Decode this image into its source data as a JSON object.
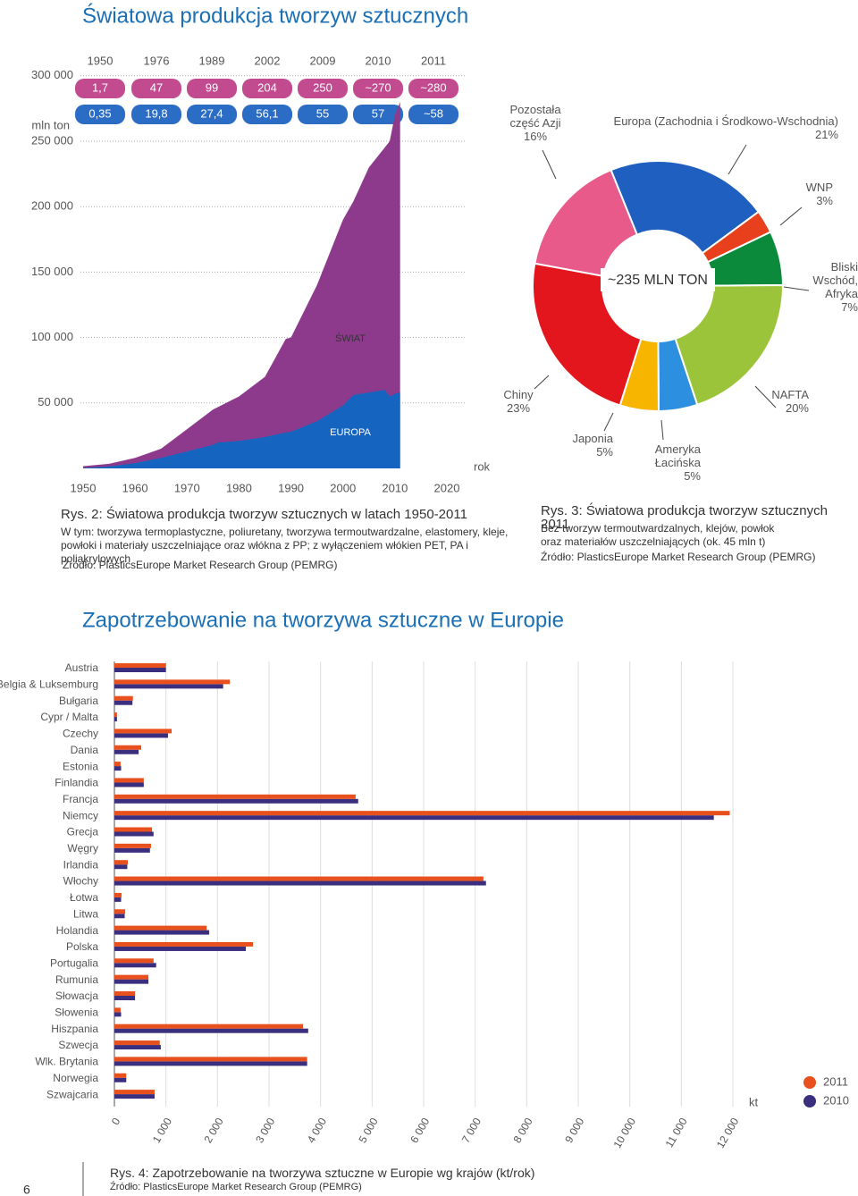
{
  "title": "Światowa produkcja tworzyw sztucznych",
  "table": {
    "years": [
      "1950",
      "1976",
      "1989",
      "2002",
      "2009",
      "2010",
      "2011"
    ],
    "world": [
      "1,7",
      "47",
      "99",
      "204",
      "250",
      "~270",
      "~280"
    ],
    "europe": [
      "0,35",
      "19,8",
      "27,4",
      "56,1",
      "55",
      "57",
      "~58"
    ]
  },
  "chart_data": [
    {
      "type": "area",
      "ylabel": "mln ton",
      "xlabel": "rok",
      "xlim": [
        1950,
        2020
      ],
      "xticks": [
        1950,
        1960,
        1970,
        1980,
        1990,
        2000,
        2010,
        2020
      ],
      "ylim": [
        0,
        300000
      ],
      "yticks": [
        {
          "value": 50000,
          "label": "50 000"
        },
        {
          "value": 100000,
          "label": "100 000"
        },
        {
          "value": 150000,
          "label": "150 000"
        },
        {
          "value": 200000,
          "label": "200 000"
        },
        {
          "value": 250000,
          "label": "250 000"
        },
        {
          "value": 300000,
          "label": "300 000"
        }
      ],
      "grid": true,
      "x": [
        1950,
        1955,
        1960,
        1965,
        1970,
        1975,
        1976,
        1980,
        1985,
        1989,
        1990,
        1995,
        2000,
        2002,
        2005,
        2008,
        2009,
        2010,
        2011
      ],
      "series": [
        {
          "name": "ŚWIAT",
          "color": "#8e3a8c",
          "values": [
            1700,
            3500,
            8000,
            15000,
            30000,
            45000,
            47000,
            55000,
            70000,
            99000,
            100000,
            140000,
            190000,
            204000,
            230000,
            245000,
            250000,
            270000,
            280000
          ]
        },
        {
          "name": "EUROPA",
          "color": "#1565c0",
          "values": [
            350,
            1500,
            4000,
            8000,
            13000,
            18000,
            19800,
            21000,
            24000,
            27400,
            28000,
            36000,
            48000,
            56100,
            58000,
            60000,
            55000,
            57000,
            58000
          ]
        }
      ],
      "caption": {
        "title": "Rys. 2: Światowa produkcja tworzyw sztucznych w latach 1950-2011",
        "note": "W tym: tworzywa termoplastyczne, poliuretany, tworzywa termoutwardzalne, elastomery, kleje, powłoki i materiały uszczelniające oraz włókna z PP; z wyłączeniem włókien PET, PA i poliakrylowych",
        "source": "Źródło: PlasticsEurope Market Research Group (PEMRG)"
      }
    },
    {
      "type": "pie",
      "center_label": "~235 MLN TON",
      "categories": [
        "Europa (Zachodnia i Środkowo-Wschodnia)",
        "WNP",
        "Bliski Wschód, Afryka",
        "NAFTA",
        "Ameryka Łacińska",
        "Japonia",
        "Chiny",
        "Pozostała część Azji"
      ],
      "values": [
        21,
        3,
        7,
        20,
        5,
        5,
        23,
        16
      ],
      "value_labels": [
        "21%",
        "3%",
        "7%",
        "20%",
        "5%",
        "5%",
        "23%",
        "16%"
      ],
      "colors": [
        "#1f5fbf",
        "#e8401c",
        "#0a8a3a",
        "#9cc43a",
        "#2d8fe0",
        "#f7b500",
        "#e3161e",
        "#e85a8a"
      ],
      "caption": {
        "title": "Rys. 3: Światowa produkcja tworzyw sztucznych 2011",
        "note": "Bez tworzyw termoutwardzalnych, klejów, powłok oraz materiałów uszczelniających (ok. 45 mln t)",
        "source": "Źródło: PlasticsEurope Market Research Group (PEMRG)"
      }
    },
    {
      "type": "bar",
      "title": "Zapotrzebowanie na tworzywa sztuczne w Europie",
      "categories": [
        "Austria",
        "Belgia & Luksemburg",
        "Bułgaria",
        "Cypr / Malta",
        "Czechy",
        "Dania",
        "Estonia",
        "Finlandia",
        "Francja",
        "Niemcy",
        "Grecja",
        "Węgry",
        "Irlandia",
        "Włochy",
        "Łotwa",
        "Litwa",
        "Holandia",
        "Polska",
        "Portugalia",
        "Rumunia",
        "Słowacja",
        "Słowenia",
        "Hiszpania",
        "Szwecja",
        "Wlk. Brytania",
        "Norwegia",
        "Szwajcaria"
      ],
      "series": [
        {
          "name": "2011",
          "color": "#e8501e",
          "values": [
            1000,
            2240,
            360,
            50,
            1110,
            520,
            120,
            570,
            4680,
            11940,
            730,
            710,
            260,
            7160,
            140,
            210,
            1790,
            2690,
            760,
            660,
            400,
            120,
            3660,
            880,
            3740,
            230,
            780
          ]
        },
        {
          "name": "2010",
          "color": "#3a2f7f",
          "values": [
            1000,
            2110,
            350,
            50,
            1040,
            470,
            130,
            570,
            4730,
            11630,
            760,
            690,
            250,
            7210,
            130,
            200,
            1840,
            2550,
            810,
            660,
            400,
            130,
            3760,
            900,
            3740,
            230,
            780
          ]
        }
      ],
      "xlim": [
        0,
        12000
      ],
      "xticks": [
        0,
        {
          "value": 1000,
          "label": "1 000"
        },
        {
          "value": 2000,
          "label": "2 000"
        },
        {
          "value": 3000,
          "label": "3 000"
        },
        {
          "value": 4000,
          "label": "4 000"
        },
        {
          "value": 5000,
          "label": "5 000"
        },
        {
          "value": 6000,
          "label": "6 000"
        },
        {
          "value": 7000,
          "label": "7 000"
        },
        {
          "value": 8000,
          "label": "8 000"
        },
        {
          "value": 9000,
          "label": "9 000"
        },
        {
          "value": 10000,
          "label": "10 000"
        },
        {
          "value": 11000,
          "label": "11 000"
        },
        {
          "value": 12000,
          "label": "12 000"
        }
      ],
      "xlabel": "kt",
      "grid": true,
      "caption": {
        "title": "Rys. 4: Zapotrzebowanie na tworzywa sztuczne w Europie wg krajów (kt/rok)",
        "source": "Źródło: PlasticsEurope Market Research Group (PEMRG)"
      }
    }
  ],
  "page_number": "6"
}
